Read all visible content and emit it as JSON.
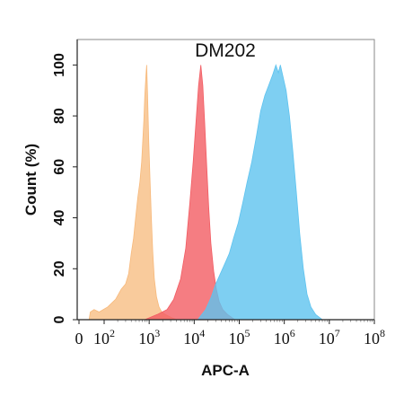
{
  "chart_data": {
    "type": "area",
    "title": "DM202",
    "xlabel": "APC-A",
    "ylabel": "Count  (%)",
    "x_scale": "log",
    "xlim": [
      0,
      100000000
    ],
    "ylim": [
      0,
      110
    ],
    "yticks": [
      0,
      20,
      40,
      60,
      80,
      100
    ],
    "xticks": [
      {
        "value": 0,
        "label": "0",
        "exp": ""
      },
      {
        "value": 100,
        "label": "10",
        "exp": "2"
      },
      {
        "value": 1000,
        "label": "10",
        "exp": "3"
      },
      {
        "value": 10000,
        "label": "10",
        "exp": "4"
      },
      {
        "value": 100000,
        "label": "10",
        "exp": "5"
      },
      {
        "value": 1000000,
        "label": "10",
        "exp": "6"
      },
      {
        "value": 10000000,
        "label": "10",
        "exp": "7"
      },
      {
        "value": 100000000,
        "label": "10",
        "exp": "8"
      }
    ],
    "grid": false,
    "legend": "none",
    "series": [
      {
        "color": "#f7b97b",
        "opacity": 0.75,
        "points": [
          [
            40,
            0
          ],
          [
            45,
            3
          ],
          [
            60,
            4
          ],
          [
            80,
            3
          ],
          [
            120,
            5
          ],
          [
            180,
            8
          ],
          [
            240,
            12
          ],
          [
            300,
            14
          ],
          [
            350,
            18
          ],
          [
            400,
            26
          ],
          [
            450,
            32
          ],
          [
            500,
            40
          ],
          [
            560,
            48
          ],
          [
            620,
            54
          ],
          [
            680,
            62
          ],
          [
            720,
            70
          ],
          [
            760,
            78
          ],
          [
            800,
            88
          ],
          [
            850,
            96
          ],
          [
            880,
            100
          ],
          [
            920,
            88
          ],
          [
            980,
            70
          ],
          [
            1050,
            54
          ],
          [
            1120,
            40
          ],
          [
            1200,
            27
          ],
          [
            1300,
            16
          ],
          [
            1450,
            9
          ],
          [
            1650,
            5
          ],
          [
            1900,
            3
          ],
          [
            2300,
            2
          ],
          [
            3000,
            1
          ],
          [
            4000,
            0
          ]
        ]
      },
      {
        "color": "#f25c63",
        "opacity": 0.8,
        "points": [
          [
            800,
            0
          ],
          [
            1500,
            2
          ],
          [
            2500,
            4
          ],
          [
            3500,
            8
          ],
          [
            5000,
            16
          ],
          [
            6500,
            28
          ],
          [
            8000,
            46
          ],
          [
            9500,
            62
          ],
          [
            11000,
            78
          ],
          [
            12500,
            92
          ],
          [
            14000,
            100
          ],
          [
            15500,
            92
          ],
          [
            17000,
            78
          ],
          [
            19000,
            60
          ],
          [
            21000,
            44
          ],
          [
            23500,
            30
          ],
          [
            27000,
            19
          ],
          [
            31000,
            12
          ],
          [
            36000,
            7
          ],
          [
            43000,
            4
          ],
          [
            55000,
            2
          ],
          [
            80000,
            0
          ]
        ]
      },
      {
        "color": "#5ec3ef",
        "opacity": 0.8,
        "points": [
          [
            12000,
            0
          ],
          [
            18000,
            4
          ],
          [
            24000,
            9
          ],
          [
            30000,
            14
          ],
          [
            38000,
            18
          ],
          [
            48000,
            22
          ],
          [
            60000,
            26
          ],
          [
            75000,
            32
          ],
          [
            95000,
            38
          ],
          [
            120000,
            46
          ],
          [
            150000,
            54
          ],
          [
            190000,
            62
          ],
          [
            240000,
            72
          ],
          [
            300000,
            82
          ],
          [
            370000,
            88
          ],
          [
            450000,
            92
          ],
          [
            550000,
            96
          ],
          [
            650000,
            100
          ],
          [
            740000,
            97
          ],
          [
            820000,
            100
          ],
          [
            950000,
            95
          ],
          [
            1100000,
            90
          ],
          [
            1300000,
            80
          ],
          [
            1550000,
            66
          ],
          [
            1850000,
            50
          ],
          [
            2200000,
            34
          ],
          [
            2650000,
            20
          ],
          [
            3200000,
            10
          ],
          [
            3900000,
            5
          ],
          [
            5000000,
            2
          ],
          [
            7000000,
            0
          ]
        ]
      }
    ]
  }
}
